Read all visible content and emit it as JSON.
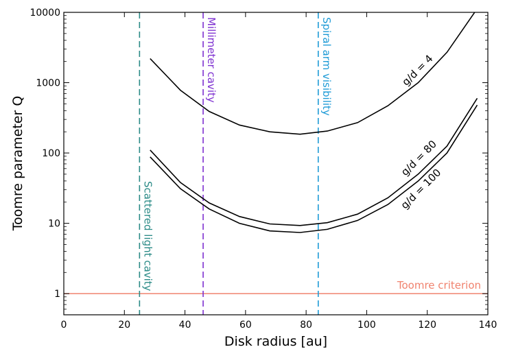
{
  "chart_data": {
    "type": "line",
    "xlabel": "Disk radius [au]",
    "ylabel": "Toomre parameter Q",
    "xlim": [
      0,
      140
    ],
    "ylim": [
      0.5,
      10000
    ],
    "yscale": "log",
    "x_ticks": [
      0,
      20,
      40,
      60,
      80,
      100,
      120,
      140
    ],
    "x_tick_labels": [
      "0",
      "20",
      "40",
      "60",
      "80",
      "100",
      "120",
      "140"
    ],
    "y_ticks": [
      1,
      10,
      100,
      1000,
      10000
    ],
    "y_tick_labels": [
      "1",
      "10",
      "100",
      "1000",
      "10000"
    ],
    "grid": false,
    "series": [
      {
        "name": "g/d = 4",
        "color": "#000000",
        "x": [
          28.5,
          38.5,
          48,
          58,
          68,
          78,
          87,
          97,
          107,
          117,
          126.5,
          136
        ],
        "y": [
          2200,
          780,
          390,
          250,
          200,
          185,
          205,
          270,
          470,
          1000,
          2700,
          10500
        ]
      },
      {
        "name": "g/d = 80",
        "color": "#000000",
        "x": [
          28.5,
          38.5,
          48,
          58,
          68,
          78,
          87,
          97,
          107,
          117,
          126.5,
          136.5
        ],
        "y": [
          110,
          38,
          19.5,
          12.5,
          9.8,
          9.3,
          10.2,
          13.5,
          23,
          50,
          125,
          600
        ]
      },
      {
        "name": "g/d = 100",
        "color": "#000000",
        "x": [
          28.5,
          38.5,
          48,
          58,
          68,
          78,
          87,
          97,
          107,
          117,
          126.5,
          136.5
        ],
        "y": [
          88,
          31,
          16,
          10,
          7.8,
          7.4,
          8.2,
          11,
          18.5,
          40,
          100,
          480
        ]
      }
    ],
    "vertical_lines": [
      {
        "x": 25,
        "label": "Scattered light cavity",
        "color": "#2a8a86",
        "style": "dashed"
      },
      {
        "x": 46,
        "label": "Millimeter cavity",
        "color": "#7d2fd0",
        "style": "dashed"
      },
      {
        "x": 84,
        "label": "Spiral arm visibility",
        "color": "#1d9ad6",
        "style": "dashed"
      }
    ],
    "horizontal_lines": [
      {
        "y": 1,
        "label": "Toomre criterion",
        "color": "#f0826e",
        "style": "solid"
      }
    ],
    "curve_labels": [
      "g/d = 4",
      "g/d = 80",
      "g/d = 100"
    ]
  }
}
